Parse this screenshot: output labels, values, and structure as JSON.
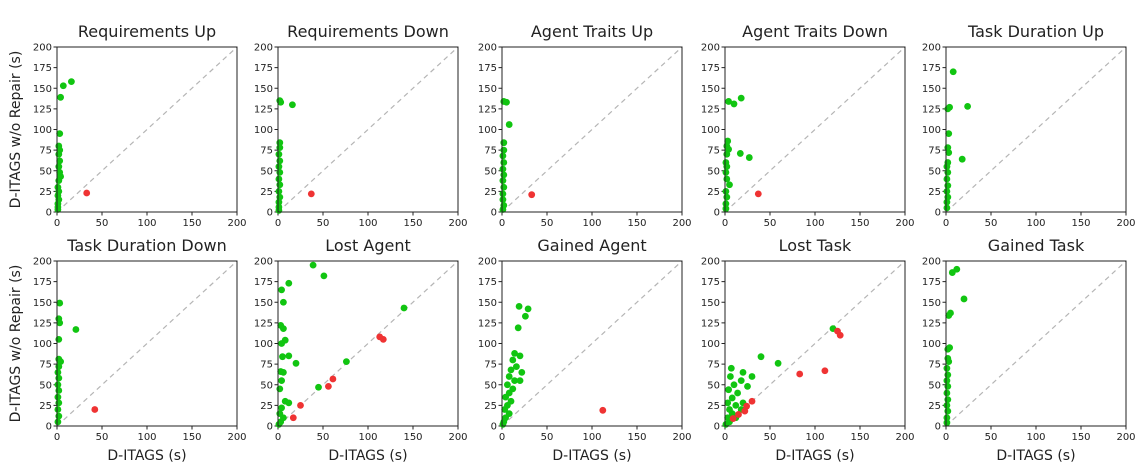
{
  "colors": {
    "improved": "#11c511",
    "worse": "#ef3333",
    "diagonal": "#b5b5b5"
  },
  "shared": {
    "xlabel": "D-ITAGS (s)",
    "ylabel": "D-ITAGS w/o Repair (s)",
    "xlim": [
      0,
      200
    ],
    "ylim": [
      0,
      200
    ],
    "xticks": [
      0,
      50,
      100,
      150,
      200
    ],
    "yticks": [
      0,
      25,
      50,
      75,
      100,
      125,
      150,
      175,
      200
    ]
  },
  "chart_data": [
    {
      "type": "scatter",
      "title": "Requirements Up",
      "xlabel": "",
      "ylabel": "D-ITAGS w/o Repair (s)",
      "xlim": [
        0,
        200
      ],
      "ylim": [
        0,
        200
      ],
      "grid": false,
      "series": [
        {
          "color": "green",
          "points": [
            [
              16,
              158
            ],
            [
              7,
              153
            ],
            [
              4,
              139
            ],
            [
              3,
              95
            ],
            [
              2,
              80
            ],
            [
              3,
              75
            ],
            [
              2,
              70
            ],
            [
              3,
              62
            ],
            [
              2,
              55
            ],
            [
              3,
              48
            ],
            [
              4,
              43
            ],
            [
              2,
              38
            ],
            [
              1,
              30
            ],
            [
              2,
              25
            ],
            [
              1,
              20
            ],
            [
              2,
              15
            ],
            [
              1,
              10
            ],
            [
              1,
              6
            ],
            [
              1,
              3
            ]
          ]
        },
        {
          "color": "red",
          "points": [
            [
              33,
              23
            ]
          ]
        }
      ]
    },
    {
      "type": "scatter",
      "title": "Requirements Down",
      "xlabel": "",
      "ylabel": "",
      "xlim": [
        0,
        200
      ],
      "ylim": [
        0,
        200
      ],
      "grid": false,
      "series": [
        {
          "color": "green",
          "points": [
            [
              2,
              135
            ],
            [
              3,
              133
            ],
            [
              16,
              130
            ],
            [
              2,
              84
            ],
            [
              2,
              78
            ],
            [
              1,
              70
            ],
            [
              2,
              62
            ],
            [
              1,
              55
            ],
            [
              2,
              48
            ],
            [
              1,
              40
            ],
            [
              2,
              33
            ],
            [
              1,
              25
            ],
            [
              2,
              18
            ],
            [
              1,
              12
            ],
            [
              1,
              6
            ],
            [
              1,
              2
            ]
          ]
        },
        {
          "color": "red",
          "points": [
            [
              37,
              22
            ]
          ]
        }
      ]
    },
    {
      "type": "scatter",
      "title": "Agent Traits Up",
      "xlabel": "",
      "ylabel": "",
      "xlim": [
        0,
        200
      ],
      "ylim": [
        0,
        200
      ],
      "grid": false,
      "series": [
        {
          "color": "green",
          "points": [
            [
              2,
              134
            ],
            [
              5,
              133
            ],
            [
              8,
              106
            ],
            [
              2,
              84
            ],
            [
              2,
              75
            ],
            [
              1,
              68
            ],
            [
              2,
              60
            ],
            [
              1,
              52
            ],
            [
              2,
              45
            ],
            [
              1,
              38
            ],
            [
              2,
              30
            ],
            [
              1,
              22
            ],
            [
              1,
              15
            ],
            [
              2,
              8
            ],
            [
              1,
              3
            ]
          ]
        },
        {
          "color": "red",
          "points": [
            [
              33,
              21
            ]
          ]
        }
      ]
    },
    {
      "type": "scatter",
      "title": "Agent Traits Down",
      "xlabel": "",
      "ylabel": "",
      "xlim": [
        0,
        200
      ],
      "ylim": [
        0,
        200
      ],
      "grid": false,
      "series": [
        {
          "color": "green",
          "points": [
            [
              18,
              138
            ],
            [
              4,
              134
            ],
            [
              10,
              131
            ],
            [
              3,
              86
            ],
            [
              2,
              80
            ],
            [
              4,
              76
            ],
            [
              2,
              70
            ],
            [
              17,
              71
            ],
            [
              27,
              66
            ],
            [
              1,
              60
            ],
            [
              2,
              55
            ],
            [
              1,
              48
            ],
            [
              2,
              40
            ],
            [
              5,
              33
            ],
            [
              1,
              25
            ],
            [
              2,
              18
            ],
            [
              1,
              10
            ],
            [
              1,
              4
            ]
          ]
        },
        {
          "color": "red",
          "points": [
            [
              37,
              22
            ]
          ]
        }
      ]
    },
    {
      "type": "scatter",
      "title": "Task Duration Up",
      "xlabel": "",
      "ylabel": "",
      "xlim": [
        0,
        200
      ],
      "ylim": [
        0,
        200
      ],
      "grid": false,
      "series": [
        {
          "color": "green",
          "points": [
            [
              8,
              170
            ],
            [
              24,
              128
            ],
            [
              4,
              127
            ],
            [
              2,
              125
            ],
            [
              3,
              95
            ],
            [
              2,
              78
            ],
            [
              3,
              72
            ],
            [
              18,
              64
            ],
            [
              2,
              60
            ],
            [
              1,
              55
            ],
            [
              2,
              48
            ],
            [
              1,
              40
            ],
            [
              2,
              32
            ],
            [
              1,
              25
            ],
            [
              2,
              18
            ],
            [
              1,
              12
            ],
            [
              1,
              5
            ]
          ]
        },
        {
          "color": "red",
          "points": []
        }
      ]
    },
    {
      "type": "scatter",
      "title": "Task Duration Down",
      "xlabel": "D-ITAGS (s)",
      "ylabel": "D-ITAGS w/o Repair (s)",
      "xlim": [
        0,
        200
      ],
      "ylim": [
        0,
        200
      ],
      "grid": false,
      "series": [
        {
          "color": "green",
          "points": [
            [
              3,
              149
            ],
            [
              2,
              130
            ],
            [
              3,
              125
            ],
            [
              21,
              117
            ],
            [
              2,
              105
            ],
            [
              2,
              81
            ],
            [
              4,
              78
            ],
            [
              2,
              72
            ],
            [
              1,
              65
            ],
            [
              2,
              58
            ],
            [
              1,
              50
            ],
            [
              2,
              43
            ],
            [
              1,
              35
            ],
            [
              2,
              28
            ],
            [
              1,
              20
            ],
            [
              2,
              12
            ],
            [
              1,
              5
            ]
          ]
        },
        {
          "color": "red",
          "points": [
            [
              42,
              20
            ]
          ]
        }
      ]
    },
    {
      "type": "scatter",
      "title": "Lost Agent",
      "xlabel": "D-ITAGS (s)",
      "ylabel": "",
      "xlim": [
        0,
        200
      ],
      "ylim": [
        0,
        200
      ],
      "grid": false,
      "series": [
        {
          "color": "green",
          "points": [
            [
              39,
              195
            ],
            [
              51,
              182
            ],
            [
              12,
              173
            ],
            [
              4,
              165
            ],
            [
              6,
              150
            ],
            [
              140,
              143
            ],
            [
              3,
              122
            ],
            [
              6,
              118
            ],
            [
              8,
              104
            ],
            [
              4,
              100
            ],
            [
              12,
              85
            ],
            [
              5,
              84
            ],
            [
              20,
              76
            ],
            [
              76,
              78
            ],
            [
              3,
              66
            ],
            [
              6,
              65
            ],
            [
              4,
              55
            ],
            [
              45,
              47
            ],
            [
              2,
              45
            ],
            [
              8,
              30
            ],
            [
              12,
              28
            ],
            [
              4,
              22
            ],
            [
              2,
              15
            ],
            [
              6,
              10
            ],
            [
              3,
              5
            ],
            [
              1,
              2
            ]
          ]
        },
        {
          "color": "red",
          "points": [
            [
              113,
              108
            ],
            [
              117,
              105
            ],
            [
              61,
              57
            ],
            [
              56,
              48
            ],
            [
              25,
              25
            ],
            [
              17,
              10
            ]
          ]
        }
      ]
    },
    {
      "type": "scatter",
      "title": "Gained Agent",
      "xlabel": "D-ITAGS (s)",
      "ylabel": "",
      "xlim": [
        0,
        200
      ],
      "ylim": [
        0,
        200
      ],
      "grid": false,
      "series": [
        {
          "color": "green",
          "points": [
            [
              19,
              145
            ],
            [
              29,
              142
            ],
            [
              26,
              133
            ],
            [
              18,
              119
            ],
            [
              14,
              88
            ],
            [
              20,
              85
            ],
            [
              12,
              80
            ],
            [
              16,
              72
            ],
            [
              10,
              68
            ],
            [
              22,
              65
            ],
            [
              8,
              60
            ],
            [
              14,
              55
            ],
            [
              20,
              55
            ],
            [
              6,
              50
            ],
            [
              12,
              45
            ],
            [
              8,
              40
            ],
            [
              4,
              35
            ],
            [
              10,
              30
            ],
            [
              6,
              25
            ],
            [
              3,
              20
            ],
            [
              8,
              15
            ],
            [
              4,
              10
            ],
            [
              2,
              5
            ],
            [
              1,
              2
            ]
          ]
        },
        {
          "color": "red",
          "points": [
            [
              112,
              19
            ]
          ]
        }
      ]
    },
    {
      "type": "scatter",
      "title": "Lost Task",
      "xlabel": "D-ITAGS (s)",
      "ylabel": "",
      "xlim": [
        0,
        200
      ],
      "ylim": [
        0,
        200
      ],
      "grid": false,
      "series": [
        {
          "color": "green",
          "points": [
            [
              120,
              118
            ],
            [
              40,
              84
            ],
            [
              59,
              76
            ],
            [
              7,
              70
            ],
            [
              20,
              65
            ],
            [
              30,
              60
            ],
            [
              6,
              60
            ],
            [
              18,
              55
            ],
            [
              10,
              50
            ],
            [
              25,
              48
            ],
            [
              4,
              44
            ],
            [
              14,
              40
            ],
            [
              8,
              34
            ],
            [
              3,
              28
            ],
            [
              20,
              28
            ],
            [
              12,
              25
            ],
            [
              5,
              20
            ],
            [
              18,
              20
            ],
            [
              8,
              15
            ],
            [
              3,
              10
            ],
            [
              12,
              10
            ],
            [
              5,
              5
            ],
            [
              1,
              2
            ]
          ]
        },
        {
          "color": "red",
          "points": [
            [
              125,
              115
            ],
            [
              128,
              110
            ],
            [
              111,
              67
            ],
            [
              83,
              63
            ],
            [
              30,
              30
            ],
            [
              24,
              24
            ],
            [
              22,
              18
            ],
            [
              15,
              14
            ],
            [
              9,
              9
            ]
          ]
        }
      ]
    },
    {
      "type": "scatter",
      "title": "Gained Task",
      "xlabel": "D-ITAGS (s)",
      "ylabel": "",
      "xlim": [
        0,
        200
      ],
      "ylim": [
        0,
        200
      ],
      "grid": false,
      "series": [
        {
          "color": "green",
          "points": [
            [
              12,
              190
            ],
            [
              7,
              186
            ],
            [
              20,
              154
            ],
            [
              5,
              137
            ],
            [
              3,
              134
            ],
            [
              4,
              95
            ],
            [
              2,
              93
            ],
            [
              2,
              82
            ],
            [
              3,
              78
            ],
            [
              1,
              70
            ],
            [
              2,
              62
            ],
            [
              1,
              55
            ],
            [
              2,
              48
            ],
            [
              1,
              40
            ],
            [
              2,
              32
            ],
            [
              1,
              25
            ],
            [
              2,
              18
            ],
            [
              1,
              10
            ],
            [
              1,
              4
            ]
          ]
        },
        {
          "color": "red",
          "points": []
        }
      ]
    }
  ]
}
